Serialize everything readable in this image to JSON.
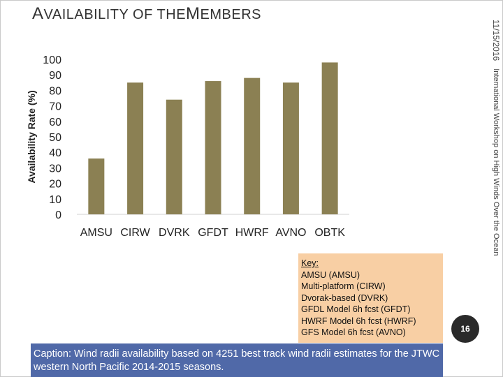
{
  "slide": {
    "title_cap1": "A",
    "title_rest1": "VAILABILITY OF THE",
    "title_cap2": "M",
    "title_rest2": "EMBERS",
    "date": "11/15/2016",
    "workshop": "International Workshop on High Winds Over the Ocean",
    "page_number": "16"
  },
  "key": {
    "title": "Key:",
    "items": [
      "AMSU (AMSU)",
      "Multi-platform (CIRW)",
      "Dvorak-based (DVRK)",
      "GFDL Model 6h fcst (GFDT)",
      "HWRF Model 6h fcst (HWRF)",
      "GFS Model 6h fcst (AVNO)"
    ]
  },
  "caption": "Caption: Wind radii availability based on 4251 best track wind radii estimates for the JTWC western North Pacific 2014-2015 seasons.",
  "colors": {
    "bar": "#8b8053",
    "key_bg": "#f8cfa4",
    "caption_bg": "#5069a8"
  },
  "chart_data": {
    "type": "bar",
    "title": "",
    "ylabel": "Availability Rate (%)",
    "xlabel": "",
    "categories": [
      "AMSU",
      "CIRW",
      "DVRK",
      "GFDT",
      "HWRF",
      "AVNO",
      "OBTK"
    ],
    "values": [
      36,
      85,
      74,
      86,
      88,
      85,
      98
    ],
    "ylim": [
      0,
      100
    ],
    "yticks": [
      0,
      10,
      20,
      30,
      40,
      50,
      60,
      70,
      80,
      90,
      100
    ],
    "grid": false,
    "legend": "none"
  }
}
